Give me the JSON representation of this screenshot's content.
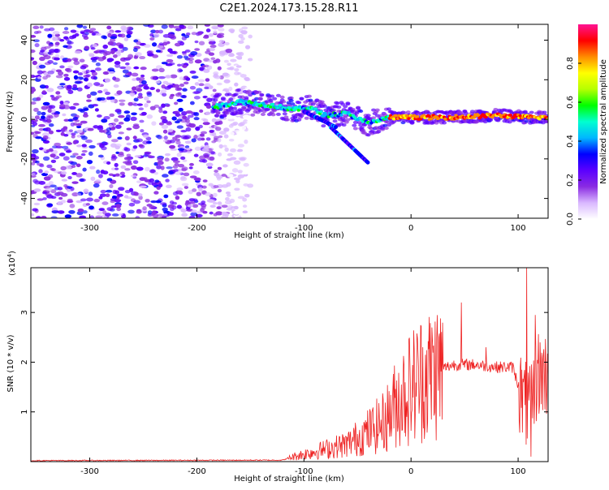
{
  "title": "C2E1.2024.173.15.28.R11",
  "chart_data": [
    {
      "type": "heatmap",
      "name": "spectrogram",
      "xlabel": "Height of straight line (km)",
      "ylabel": "Frequency (Hz)",
      "xlim": [
        -355,
        128
      ],
      "ylim": [
        -50,
        48
      ],
      "x_ticks": [
        -300,
        -200,
        -100,
        0,
        100
      ],
      "y_ticks": [
        -40,
        -20,
        0,
        20,
        40
      ],
      "colorbar": {
        "label": "Normalized spectral amplitude",
        "range": [
          0,
          1
        ],
        "ticks": [
          0.0,
          0.2,
          0.4,
          0.6,
          0.8
        ],
        "colors": [
          "#ffffff",
          "#d9b8ff",
          "#8a2be2",
          "#5b00ff",
          "#0000ff",
          "#00b7ff",
          "#00ffd0",
          "#00ff00",
          "#b6ff00",
          "#ffff00",
          "#ff8c00",
          "#ff0000",
          "#ff1493"
        ]
      },
      "signal_ridge": [
        {
          "x": -185,
          "freq": 6
        },
        {
          "x": -160,
          "freq": 9
        },
        {
          "x": -130,
          "freq": 7
        },
        {
          "x": -110,
          "freq": 5
        },
        {
          "x": -95,
          "freq": 6
        },
        {
          "x": -80,
          "freq": 2
        },
        {
          "x": -60,
          "freq": 3
        },
        {
          "x": -40,
          "freq": -2
        },
        {
          "x": -20,
          "freq": 1
        },
        {
          "x": 0,
          "freq": 1
        },
        {
          "x": 40,
          "freq": 1
        },
        {
          "x": 80,
          "freq": 2
        },
        {
          "x": 110,
          "freq": 1
        },
        {
          "x": 128,
          "freq": 1
        }
      ],
      "branches": [
        {
          "x0": -75,
          "f0": -4,
          "x1": -40,
          "f1": -22
        },
        {
          "x0": -100,
          "f0": 4,
          "x1": -70,
          "f1": -4
        }
      ],
      "noise_extent": {
        "x_min": -355,
        "x_max": -150
      }
    },
    {
      "type": "line",
      "name": "snr",
      "xlabel": "Height of straight line (km)",
      "ylabel": "SNR (10 * v/v)",
      "scale_label": "(x10",
      "scale_exponent": "4",
      "scale_close": ")",
      "xlim": [
        -355,
        128
      ],
      "ylim": [
        0,
        3.9
      ],
      "x_ticks": [
        -300,
        -200,
        -100,
        0,
        100
      ],
      "y_ticks": [
        1,
        2,
        3
      ],
      "color": "#ee2222",
      "envelope": [
        {
          "x": -355,
          "y": 0.02
        },
        {
          "x": -120,
          "y": 0.03
        },
        {
          "x": -110,
          "y": 0.1
        },
        {
          "x": -90,
          "y": 0.2
        },
        {
          "x": -60,
          "y": 0.35
        },
        {
          "x": -40,
          "y": 0.6
        },
        {
          "x": -25,
          "y": 0.8
        },
        {
          "x": -10,
          "y": 1.3
        },
        {
          "x": 0,
          "y": 1.5
        },
        {
          "x": 10,
          "y": 1.7
        },
        {
          "x": 25,
          "y": 1.85
        },
        {
          "x": 40,
          "y": 1.95
        },
        {
          "x": 60,
          "y": 1.95
        },
        {
          "x": 80,
          "y": 1.9
        },
        {
          "x": 95,
          "y": 1.9
        },
        {
          "x": 105,
          "y": 1.2
        },
        {
          "x": 112,
          "y": 1.0
        },
        {
          "x": 118,
          "y": 1.78
        },
        {
          "x": 128,
          "y": 1.75
        }
      ],
      "spikes": [
        {
          "x": 47,
          "y": 3.2
        },
        {
          "x": 70,
          "y": 2.3
        },
        {
          "x": 108,
          "y": 3.9
        },
        {
          "x": 112,
          "y": 0.1
        },
        {
          "x": 116,
          "y": 2.95
        }
      ]
    }
  ]
}
